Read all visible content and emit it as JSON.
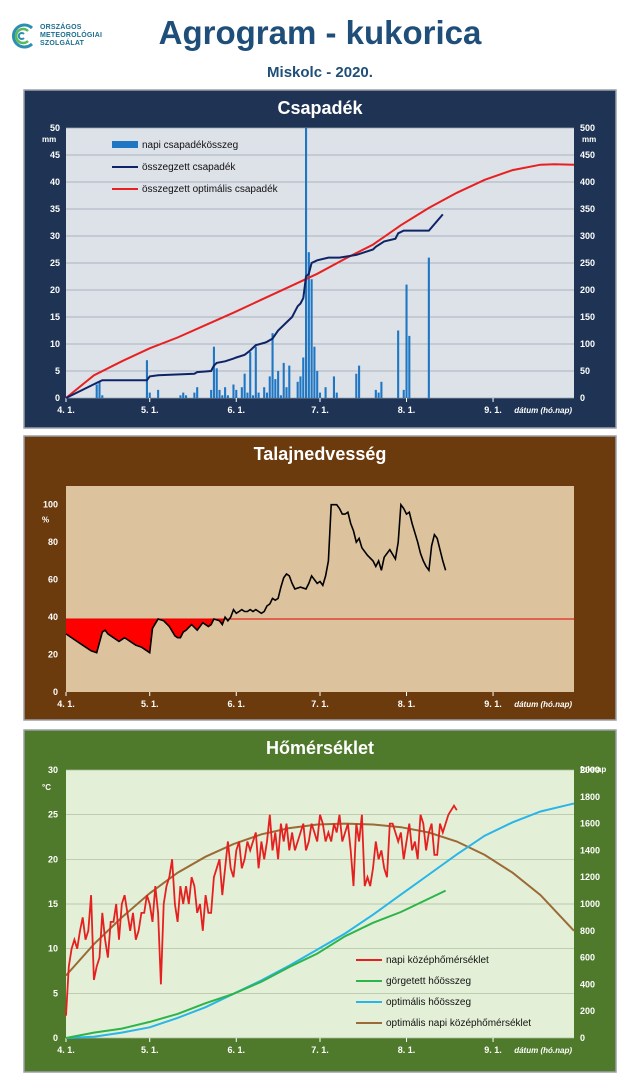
{
  "header": {
    "logo_lines": [
      "ORSZÁGOS",
      "METEOROLÓGIAI",
      "SZOLGÁLAT"
    ],
    "title": "Agrogram - kukorica",
    "subtitle": "Miskolc - 2020."
  },
  "colors": {
    "precip_bg": "#1f3454",
    "precip_plot": "#dde1e8",
    "soil_bg": "#6b3a0d",
    "soil_plot": "#dcc39d",
    "temp_bg": "#4f7a2b",
    "temp_plot": "#e3f0d7",
    "bar": "#1f77c4",
    "cum": "#0e2466",
    "opt": "#e82020",
    "dry": "#ff0000",
    "soil_line": "#000000",
    "t_daily": "#e62020",
    "t_gdd": "#2db44a",
    "t_optgdd": "#29b5e8",
    "t_optdaily": "#9b6a36"
  },
  "chart_data": [
    {
      "type": "bar+line",
      "title": "Csapadék",
      "xlabel": "dátum (hó.nap)",
      "ylabel_left": "mm",
      "ylabel_right": "mm",
      "ylim_left": [
        0,
        50
      ],
      "ylim_right": [
        0,
        500
      ],
      "yticks_left": [
        "0",
        "5",
        "10",
        "15",
        "20",
        "25",
        "30",
        "35",
        "40",
        "45",
        "50"
      ],
      "yticks_right": [
        "0",
        "50",
        "100",
        "150",
        "200",
        "250",
        "300",
        "350",
        "400",
        "450",
        "500"
      ],
      "xticks": [
        "4. 1.",
        "5. 1.",
        "6. 1.",
        "7. 1.",
        "8. 1.",
        "9. 1."
      ],
      "xtick_days": [
        0,
        30,
        61,
        91,
        122,
        153
      ],
      "xmax_day": 182,
      "legend": [
        "napi csapadékösszeg",
        "összegzett csapadék",
        "összegzett optimális  csapadék"
      ],
      "bars_day": [
        11,
        12,
        13,
        29,
        30,
        33,
        41,
        42,
        43,
        46,
        47,
        52,
        53,
        54,
        55,
        56,
        57,
        58,
        60,
        61,
        63,
        64,
        65,
        66,
        67,
        68,
        69,
        70,
        71,
        72,
        73,
        74,
        75,
        76,
        77,
        78,
        79,
        80,
        81,
        82,
        83,
        84,
        85,
        86,
        87,
        88,
        89,
        90,
        91,
        92,
        93,
        94,
        95,
        96,
        97,
        98,
        99,
        100,
        101,
        102,
        103,
        104,
        105,
        106,
        107,
        108,
        109,
        110,
        111,
        112,
        113,
        114,
        115,
        116,
        117,
        118,
        119,
        120,
        121,
        122,
        123,
        124,
        125,
        126,
        127,
        128,
        129,
        130
      ],
      "bars_mm": [
        2.5,
        3,
        0.5,
        7,
        1,
        1.5,
        0.5,
        1,
        0.5,
        1,
        2,
        1.5,
        9.5,
        5.5,
        1.5,
        0.5,
        2,
        0.5,
        2.5,
        1.5,
        2,
        4.5,
        1,
        8.5,
        0.5,
        9.5,
        1,
        0,
        2,
        1,
        4,
        12,
        3.5,
        5,
        0.5,
        6.5,
        2,
        6,
        0,
        0,
        3,
        4,
        7.5,
        50,
        27,
        22,
        9.5,
        5,
        1,
        0,
        2,
        0,
        0,
        4,
        1,
        0,
        0,
        0,
        0,
        0,
        0,
        4.5,
        6,
        0,
        0,
        0,
        0,
        0,
        1.5,
        1,
        3,
        0,
        0,
        0,
        0,
        0,
        12.5,
        0,
        1.5,
        21,
        11.5,
        0,
        0,
        0,
        0,
        0,
        0,
        26
      ],
      "cum_x": [
        0,
        11,
        13,
        29,
        30,
        33,
        46,
        47,
        52,
        53,
        54,
        57,
        60,
        61,
        64,
        66,
        68,
        71,
        72,
        74,
        76,
        78,
        79,
        81,
        82,
        83,
        84,
        85,
        86,
        87,
        88,
        90,
        94,
        98,
        104,
        110,
        111,
        114,
        118,
        119,
        121,
        130,
        135
      ],
      "cum_mm": [
        0,
        28,
        33,
        33,
        40,
        42,
        45,
        48,
        50,
        60,
        65,
        68,
        73,
        75,
        80,
        88,
        98,
        102,
        104,
        110,
        125,
        135,
        140,
        150,
        160,
        170,
        175,
        185,
        225,
        230,
        250,
        255,
        260,
        260,
        265,
        275,
        280,
        290,
        295,
        305,
        310,
        310,
        340
      ],
      "opt_x": [
        0,
        10,
        20,
        30,
        40,
        50,
        60,
        70,
        80,
        90,
        100,
        110,
        120,
        130,
        140,
        150,
        160,
        170,
        175,
        182
      ],
      "opt_mm": [
        0,
        42,
        68,
        92,
        112,
        135,
        158,
        182,
        206,
        230,
        258,
        284,
        320,
        352,
        380,
        404,
        422,
        432,
        433,
        432
      ]
    },
    {
      "type": "line",
      "title": "Talajnedvesség",
      "xlabel": "dátum (hó.nap)",
      "ylabel": "%",
      "ylim": [
        0,
        110
      ],
      "yticks": [
        "0",
        "20",
        "40",
        "60",
        "80",
        "100"
      ],
      "xticks": [
        "4. 1.",
        "5. 1.",
        "6. 1.",
        "7. 1.",
        "8. 1.",
        "9. 1."
      ],
      "xtick_days": [
        0,
        30,
        61,
        91,
        122,
        153
      ],
      "xmax_day": 182,
      "threshold": 39,
      "x": [
        0,
        3,
        6,
        9,
        11,
        13,
        14,
        15,
        17,
        19,
        21,
        23,
        25,
        27,
        29,
        30,
        31,
        33,
        35,
        37,
        39,
        40,
        41,
        42,
        43,
        45,
        47,
        49,
        51,
        52,
        53,
        55,
        56,
        57,
        58,
        59,
        60,
        61,
        62,
        63,
        64,
        65,
        66,
        67,
        68,
        69,
        70,
        71,
        72,
        73,
        74,
        75,
        76,
        77,
        78,
        79,
        80,
        81,
        82,
        84,
        86,
        87,
        88,
        89,
        90,
        91,
        92,
        93,
        94,
        95,
        96,
        97,
        98,
        99,
        100,
        101,
        102,
        103,
        104,
        105,
        106,
        108,
        110,
        111,
        112,
        113,
        114,
        116,
        118,
        119,
        120,
        121,
        122,
        123,
        124,
        125,
        126,
        127,
        128,
        129,
        130,
        131,
        132,
        133,
        134,
        135,
        136
      ],
      "y": [
        31,
        28,
        25,
        22,
        21,
        32,
        33,
        31,
        29,
        27,
        29,
        27,
        25,
        24,
        22,
        21,
        34,
        39,
        38,
        35,
        30,
        29,
        29,
        32,
        33,
        36,
        33,
        37,
        35,
        36,
        39,
        38,
        36,
        40,
        38,
        40,
        44,
        42,
        43,
        44,
        43,
        43,
        44,
        43,
        44,
        43,
        42,
        43,
        46,
        47,
        50,
        49,
        50,
        56,
        61,
        63,
        62,
        58,
        55,
        56,
        55,
        58,
        62,
        60,
        58,
        59,
        57,
        62,
        70,
        100,
        100,
        100,
        98,
        95,
        95,
        96,
        90,
        86,
        80,
        82,
        77,
        73,
        70,
        67,
        70,
        65,
        72,
        76,
        71,
        80,
        100,
        98,
        95,
        96,
        90,
        85,
        80,
        74,
        70,
        67,
        65,
        78,
        84,
        82,
        76,
        70,
        65
      ]
    },
    {
      "type": "line",
      "title": "Hőmérséklet",
      "xlabel": "dátum (hó.nap)",
      "ylabel_left": "°C",
      "ylabel_right": "foknap",
      "ylim_left": [
        0,
        30
      ],
      "ylim_right": [
        0,
        2000
      ],
      "yticks_left": [
        "0",
        "5",
        "10",
        "15",
        "20",
        "25",
        "30"
      ],
      "yticks_right": [
        "0",
        "200",
        "400",
        "600",
        "800",
        "1000",
        "1200",
        "1400",
        "1600",
        "1800",
        "2000"
      ],
      "xticks": [
        "4. 1.",
        "5. 1.",
        "6. 1.",
        "7. 1.",
        "8. 1.",
        "9. 1."
      ],
      "xtick_days": [
        0,
        30,
        61,
        91,
        122,
        153
      ],
      "xmax_day": 182,
      "legend": [
        "napi középhőmérséklet",
        "görgetett hőösszeg",
        "optimális hőösszeg",
        "optimális napi középhőmérséklet"
      ],
      "daily_x": [
        0,
        1,
        2,
        3,
        4,
        5,
        6,
        7,
        8,
        9,
        10,
        11,
        12,
        13,
        14,
        15,
        16,
        17,
        18,
        19,
        20,
        21,
        22,
        23,
        24,
        25,
        26,
        27,
        28,
        29,
        30,
        31,
        32,
        33,
        34,
        35,
        36,
        37,
        38,
        39,
        40,
        41,
        42,
        43,
        44,
        45,
        46,
        47,
        48,
        49,
        50,
        51,
        52,
        53,
        54,
        55,
        56,
        57,
        58,
        59,
        60,
        61,
        62,
        63,
        64,
        65,
        66,
        67,
        68,
        69,
        70,
        71,
        72,
        73,
        74,
        75,
        76,
        77,
        78,
        79,
        80,
        81,
        82,
        83,
        84,
        85,
        86,
        87,
        88,
        89,
        90,
        91,
        92,
        93,
        94,
        95,
        96,
        97,
        98,
        99,
        100,
        101,
        102,
        103,
        104,
        105,
        106,
        107,
        108,
        109,
        110,
        111,
        112,
        113,
        114,
        115,
        116,
        117,
        118,
        119,
        120,
        121,
        122,
        123,
        124,
        125,
        126,
        127,
        128,
        129,
        130,
        131,
        132,
        133,
        134,
        135,
        136,
        137,
        138,
        139,
        140
      ],
      "daily_t": [
        2.5,
        8,
        10,
        11,
        10,
        12,
        13.5,
        11,
        12,
        16,
        6.5,
        8,
        9,
        14,
        11,
        9,
        13,
        13,
        15,
        11,
        15,
        16,
        14,
        12,
        14,
        11,
        12,
        14,
        14,
        16,
        15,
        13,
        17,
        14,
        6,
        15,
        17,
        18,
        20,
        15,
        13,
        17,
        15,
        17,
        15,
        18,
        17,
        14,
        15,
        12,
        16,
        14,
        14,
        18,
        19,
        20,
        16,
        19,
        22,
        19,
        18,
        21,
        22,
        19,
        20,
        22,
        21,
        22,
        23,
        19,
        22,
        20,
        22,
        25,
        21,
        23,
        20,
        24,
        22,
        24,
        21,
        23,
        21,
        22,
        23,
        24,
        21,
        22,
        24,
        23,
        22,
        25,
        24,
        22,
        23,
        22,
        24,
        23,
        25,
        22,
        23,
        24,
        21,
        17,
        24,
        22,
        25,
        17,
        18,
        17,
        19,
        22,
        20,
        21,
        19,
        18,
        24,
        24,
        23,
        22,
        23,
        20,
        22,
        24,
        21,
        22,
        20,
        25,
        24,
        21,
        23,
        24,
        20.5,
        20.5,
        24,
        23,
        24,
        25,
        25.5,
        26,
        25.5
      ],
      "gdd_x": [
        0,
        10,
        20,
        30,
        40,
        50,
        60,
        70,
        80,
        90,
        100,
        110,
        120,
        130,
        136
      ],
      "gdd_foknap": [
        0,
        40,
        70,
        120,
        180,
        260,
        330,
        420,
        530,
        630,
        760,
        860,
        940,
        1040,
        1100
      ],
      "optgdd_x": [
        0,
        10,
        20,
        30,
        40,
        50,
        60,
        70,
        80,
        90,
        100,
        110,
        120,
        130,
        140,
        150,
        160,
        170,
        180,
        182
      ],
      "optgdd_foknap": [
        0,
        10,
        40,
        80,
        150,
        230,
        330,
        430,
        540,
        660,
        780,
        920,
        1070,
        1220,
        1370,
        1510,
        1610,
        1690,
        1740,
        1750
      ],
      "optdaily_x": [
        0,
        10,
        20,
        30,
        40,
        50,
        60,
        70,
        80,
        90,
        100,
        110,
        120,
        130,
        140,
        150,
        160,
        170,
        182
      ],
      "optdaily_t": [
        7,
        10.5,
        13.5,
        16.2,
        18.5,
        20.3,
        21.7,
        22.8,
        23.5,
        23.9,
        24,
        23.9,
        23.6,
        23,
        22,
        20.5,
        18.5,
        16,
        12
      ]
    }
  ]
}
